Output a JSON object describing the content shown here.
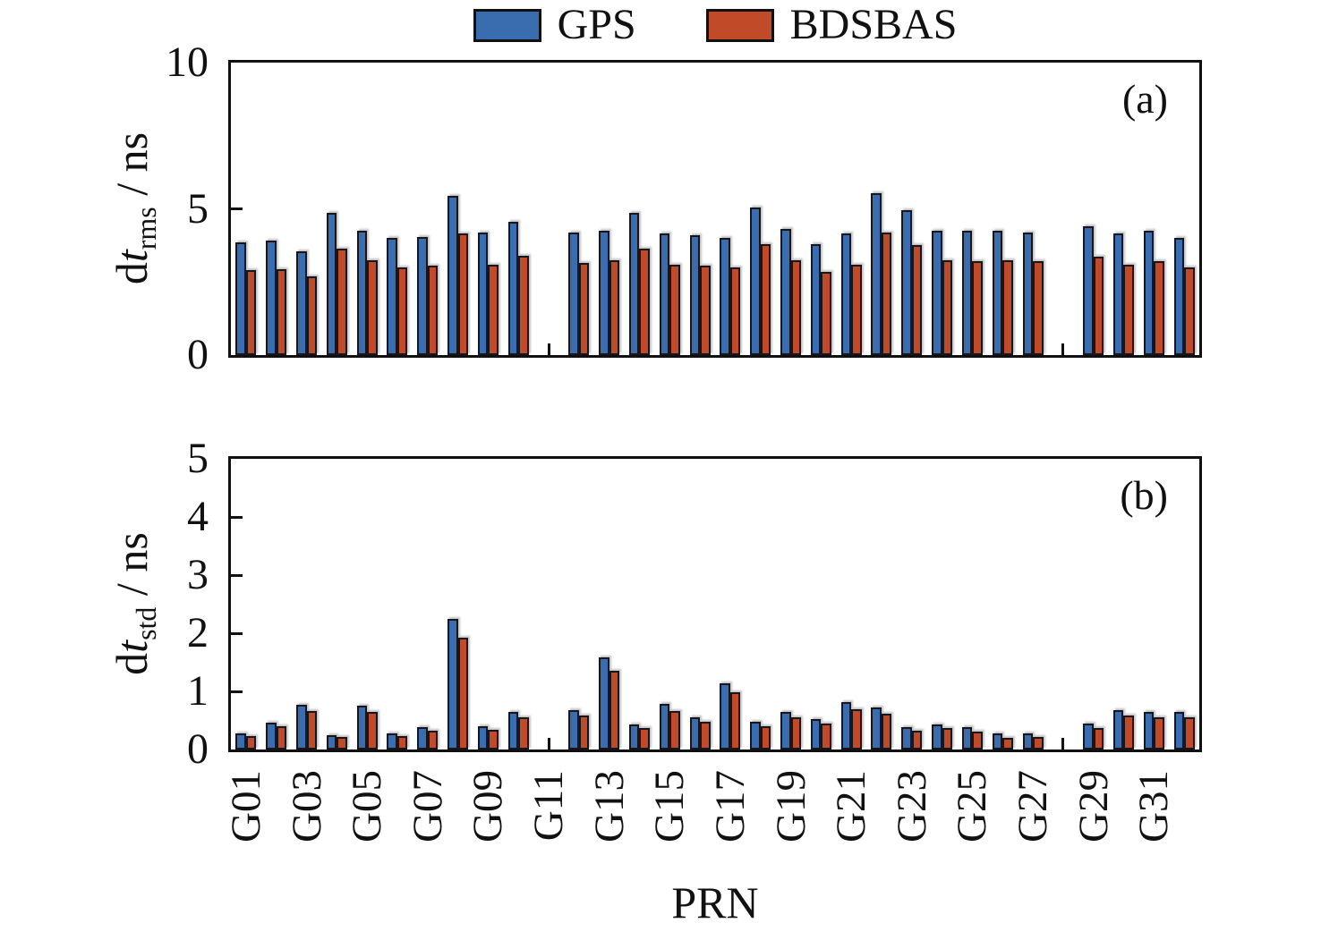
{
  "legend": {
    "items": [
      {
        "label": "GPS",
        "color": "#3a6cb0"
      },
      {
        "label": "BDSBAS",
        "color": "#c14a28"
      }
    ]
  },
  "xlabel": "PRN",
  "categories": [
    "G01",
    "G02",
    "G03",
    "G04",
    "G05",
    "G06",
    "G07",
    "G08",
    "G09",
    "G10",
    "G11",
    "G12",
    "G13",
    "G14",
    "G15",
    "G16",
    "G17",
    "G18",
    "G19",
    "G20",
    "G21",
    "G22",
    "G23",
    "G24",
    "G25",
    "G26",
    "G27",
    "G28",
    "G29",
    "G30",
    "G31",
    "G32"
  ],
  "xtick_labels": [
    "G01",
    "G03",
    "G05",
    "G07",
    "G09",
    "G11",
    "G13",
    "G15",
    "G17",
    "G19",
    "G21",
    "G23",
    "G25",
    "G27",
    "G29",
    "G31"
  ],
  "chart_data": [
    {
      "type": "bar",
      "panel_label": "(a)",
      "ylabel": {
        "prefix": "d",
        "italic": "t",
        "sub": "rms",
        "unit": " / ns"
      },
      "ylim": [
        0,
        10
      ],
      "yticks": [
        0,
        5,
        10
      ],
      "series": [
        {
          "name": "GPS",
          "color": "#3a6cb0",
          "values": [
            3.85,
            3.9,
            3.55,
            4.85,
            4.25,
            4.0,
            4.05,
            5.45,
            4.2,
            4.55,
            null,
            4.2,
            4.25,
            4.85,
            4.15,
            4.1,
            4.0,
            5.05,
            4.3,
            3.8,
            4.15,
            5.55,
            4.95,
            4.25,
            4.25,
            4.25,
            4.2,
            null,
            4.4,
            4.15,
            4.25,
            4.0
          ]
        },
        {
          "name": "BDSBAS",
          "color": "#c14a28",
          "values": [
            2.9,
            2.95,
            2.7,
            3.65,
            3.25,
            3.0,
            3.05,
            4.15,
            3.1,
            3.4,
            null,
            3.15,
            3.25,
            3.65,
            3.1,
            3.05,
            3.0,
            3.8,
            3.25,
            2.85,
            3.1,
            4.2,
            3.75,
            3.25,
            3.2,
            3.25,
            3.2,
            null,
            3.35,
            3.1,
            3.2,
            3.0
          ]
        }
      ]
    },
    {
      "type": "bar",
      "panel_label": "(b)",
      "ylabel": {
        "prefix": "d",
        "italic": "t",
        "sub": "std",
        "unit": " / ns"
      },
      "ylim": [
        0,
        5
      ],
      "yticks": [
        0,
        1,
        2,
        3,
        4,
        5
      ],
      "series": [
        {
          "name": "GPS",
          "color": "#3a6cb0",
          "values": [
            0.27,
            0.46,
            0.77,
            0.25,
            0.75,
            0.28,
            0.39,
            2.25,
            0.4,
            0.65,
            null,
            0.68,
            1.58,
            0.43,
            0.78,
            0.56,
            1.14,
            0.47,
            0.64,
            0.52,
            0.81,
            0.72,
            0.39,
            0.43,
            0.38,
            0.27,
            0.28,
            null,
            0.44,
            0.68,
            0.65,
            0.65
          ]
        },
        {
          "name": "BDSBAS",
          "color": "#c14a28",
          "values": [
            0.23,
            0.4,
            0.66,
            0.21,
            0.64,
            0.23,
            0.33,
            1.93,
            0.34,
            0.55,
            null,
            0.59,
            1.35,
            0.37,
            0.66,
            0.48,
            0.99,
            0.4,
            0.56,
            0.44,
            0.69,
            0.62,
            0.33,
            0.37,
            0.31,
            0.2,
            0.22,
            null,
            0.37,
            0.59,
            0.56,
            0.56
          ]
        }
      ]
    }
  ]
}
